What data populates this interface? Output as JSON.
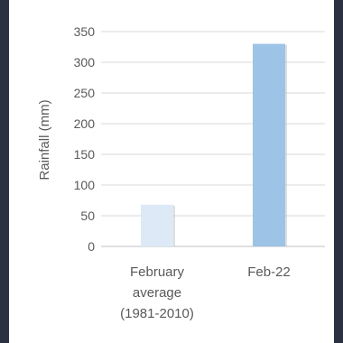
{
  "chart_data": {
    "type": "bar",
    "categories": [
      [
        "February",
        "average",
        "(1981-2010)"
      ],
      [
        "Feb-22"
      ]
    ],
    "values": [
      68,
      330
    ],
    "title": "",
    "xlabel": "",
    "ylabel": "Rainfall (mm)",
    "ylim": [
      0,
      350
    ],
    "yticks": [
      0,
      50,
      100,
      150,
      200,
      250,
      300,
      350
    ],
    "grid": true,
    "bar_colors": [
      "#dde9f6",
      "#9dc3e6"
    ],
    "bar_shadow": true
  }
}
